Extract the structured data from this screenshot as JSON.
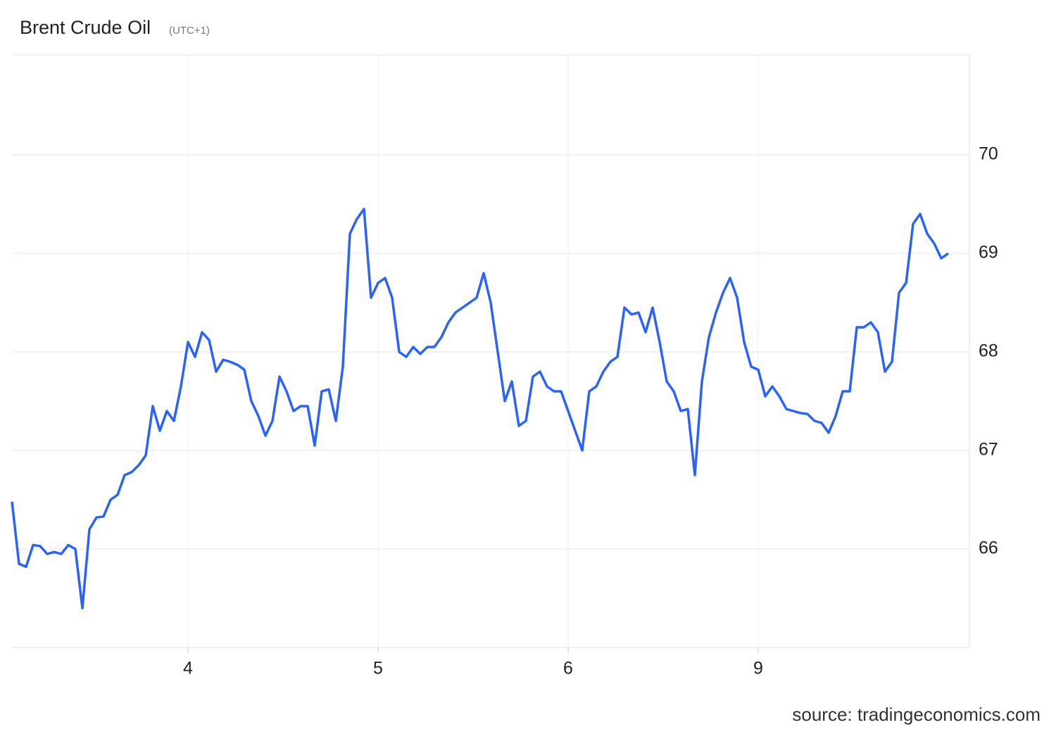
{
  "chart_data": {
    "type": "line",
    "title": "Brent Crude Oil",
    "subtitle": "(UTC+1)",
    "source": "source: tradingeconomics.com",
    "categories": [
      null,
      null,
      null,
      null,
      null,
      null,
      null,
      null,
      null,
      null,
      null,
      null,
      null,
      null,
      null,
      null,
      null,
      null,
      null,
      null,
      null,
      null,
      null,
      null,
      null,
      "4",
      null,
      null,
      null,
      null,
      null,
      null,
      null,
      null,
      null,
      null,
      null,
      null,
      null,
      null,
      null,
      null,
      null,
      null,
      null,
      null,
      null,
      null,
      null,
      null,
      null,
      null,
      "5",
      null,
      null,
      null,
      null,
      null,
      null,
      null,
      null,
      null,
      null,
      null,
      null,
      null,
      null,
      null,
      null,
      null,
      null,
      null,
      null,
      null,
      null,
      null,
      null,
      null,
      null,
      "6",
      null,
      null,
      null,
      null,
      null,
      null,
      null,
      null,
      null,
      null,
      null,
      null,
      null,
      null,
      null,
      null,
      null,
      null,
      null,
      null,
      null,
      null,
      null,
      null,
      null,
      null,
      "9",
      null,
      null,
      null,
      null,
      null,
      null,
      null,
      null,
      null,
      null,
      null,
      null,
      null,
      null,
      null,
      null,
      null,
      null,
      null,
      null,
      null,
      null,
      null,
      null,
      null,
      null,
      null
    ],
    "series": [
      {
        "name": "Brent Crude Oil",
        "color": "#2962ff",
        "values": [
          66.48,
          65.85,
          65.82,
          66.04,
          66.03,
          65.95,
          65.97,
          65.95,
          66.04,
          66.0,
          65.4,
          66.2,
          66.32,
          66.33,
          66.5,
          66.55,
          66.75,
          66.78,
          66.85,
          66.95,
          67.45,
          67.2,
          67.4,
          67.3,
          67.65,
          68.1,
          67.95,
          68.2,
          68.12,
          67.8,
          67.92,
          67.9,
          67.87,
          67.82,
          67.5,
          67.35,
          67.15,
          67.3,
          67.75,
          67.6,
          67.4,
          67.45,
          67.45,
          67.05,
          67.6,
          67.62,
          67.3,
          67.85,
          69.2,
          69.35,
          69.45,
          68.55,
          68.7,
          68.75,
          68.55,
          68.0,
          67.95,
          68.05,
          67.98,
          68.05,
          68.05,
          68.15,
          68.3,
          68.4,
          68.45,
          68.5,
          68.55,
          68.8,
          68.5,
          68.0,
          67.5,
          67.7,
          67.25,
          67.3,
          67.75,
          67.8,
          67.65,
          67.6,
          67.6,
          67.4,
          67.2,
          67.0,
          67.6,
          67.65,
          67.8,
          67.9,
          67.95,
          68.45,
          68.38,
          68.4,
          68.2,
          68.45,
          68.1,
          67.7,
          67.6,
          67.4,
          67.42,
          66.75,
          67.7,
          68.15,
          68.4,
          68.6,
          68.75,
          68.55,
          68.1,
          67.85,
          67.82,
          67.55,
          67.65,
          67.55,
          67.42,
          67.4,
          67.38,
          67.37,
          67.3,
          67.28,
          67.18,
          67.35,
          67.6,
          67.6,
          68.25,
          68.25,
          68.3,
          68.2,
          67.8,
          67.9,
          68.6,
          68.7,
          69.3,
          69.4,
          69.2,
          69.1,
          68.95,
          69.0
        ]
      }
    ],
    "ylim": [
      65,
      71
    ],
    "yticks": [
      66,
      67,
      68,
      69,
      70
    ],
    "grid": true
  }
}
